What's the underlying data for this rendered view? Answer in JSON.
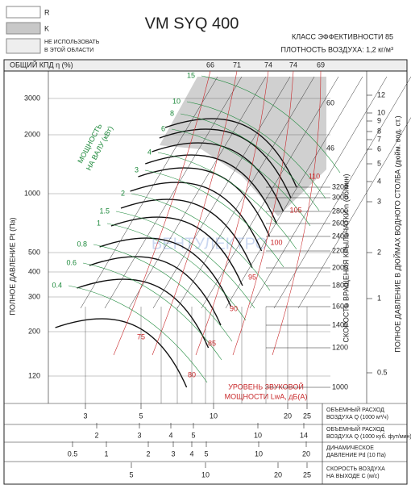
{
  "header": {
    "title": "VM SYQ 400",
    "legend": [
      "R",
      "K",
      "НЕ ИСПОЛЬЗОВАТЬ",
      "В ЭТОЙ ОБЛАСТИ"
    ],
    "efficiency_class": "КЛАСС ЭФФЕКТИВНОСТИ 85",
    "density": "ПЛОТНОСТЬ ВОЗДУХА: 1,2 кг/м³"
  },
  "efficiency": {
    "label": "ОБЩИЙ КПД η (%)",
    "ticks": [
      "66",
      "71",
      "74",
      "74",
      "69"
    ]
  },
  "pressure": {
    "label": "ПОЛНОЕ ДАВЛЕНИЕ Pt (Па)",
    "ticks": [
      "3000",
      "2000",
      "1000",
      "500",
      "400",
      "300",
      "200",
      "120"
    ]
  },
  "power": {
    "label_lines": [
      "МОЩНОСТЬ",
      "НА ВАЛУ (кВт)"
    ],
    "ticks": [
      "15",
      "10",
      "8",
      "6",
      "4",
      "3",
      "2",
      "1.5",
      "1",
      "0.8",
      "0.6",
      "0.4"
    ]
  },
  "blade_angles": [
    "60",
    "46"
  ],
  "sound": {
    "label_lines": [
      "УРОВЕНЬ ЗВУКОВОЙ",
      "МОЩНОСТИ LwA, дБ(A)"
    ],
    "ticks": [
      "110",
      "105",
      "100",
      "95",
      "90",
      "85",
      "80",
      "75"
    ]
  },
  "rpm": {
    "label": "СКОРОСТЬ ВРАЩЕНИЯ КРЫЛЬЧАТКИ n (об/мин)",
    "ticks": [
      "3200",
      "3000",
      "2800",
      "2600",
      "2400",
      "2200",
      "2000",
      "1800",
      "1600",
      "1400",
      "1200",
      "1000"
    ]
  },
  "inches": {
    "label": "ПОЛНОЕ ДАВЛЕНИЕ В ДЮЙМАХ ВОДНОГО СТОЛБА (дюйм. вод. ст.)",
    "ticks": [
      "12",
      "10",
      "9",
      "8",
      "7",
      "6",
      "5",
      "4",
      "3",
      "2",
      "1",
      "0.5"
    ]
  },
  "watermark": "ВЕНТУЛЕКТРО",
  "scales": [
    {
      "label_lines": [
        "ОБЪЕМНЫЙ РАСХОД",
        "ВОЗДУХА Q (1000 м³/ч)"
      ],
      "ticks": [
        "3",
        "5",
        "10",
        "20",
        "25"
      ]
    },
    {
      "label_lines": [
        "ОБЪЕМНЫЙ РАСХОД",
        "ВОЗДУХА Q (1000 куб. фут/мин)"
      ],
      "ticks": [
        "2",
        "3",
        "4",
        "5",
        "10",
        "14"
      ]
    },
    {
      "label_lines": [
        "ДИНАМИЧЕСКОЕ",
        "ДАВЛЕНИЕ Pd (10 Па)"
      ],
      "ticks": [
        "0.5",
        "1",
        "2",
        "3",
        "4",
        "5",
        "10",
        "20"
      ]
    },
    {
      "label_lines": [
        "СКОРОСТЬ ВОЗДУХА",
        "НА ВЫХОДЕ C (м/с)"
      ],
      "ticks": [
        "5",
        "10",
        "20",
        "25"
      ]
    }
  ]
}
